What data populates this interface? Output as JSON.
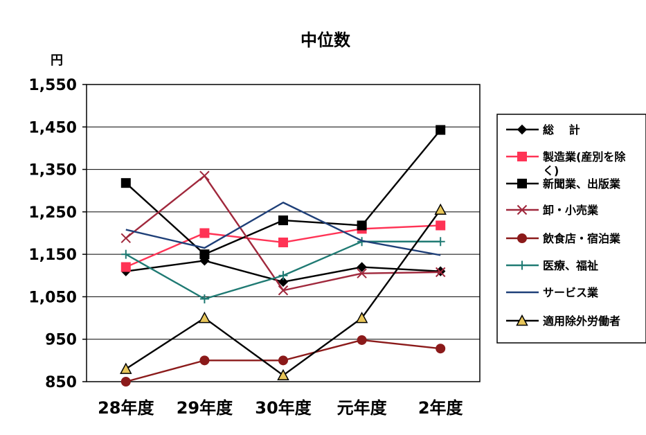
{
  "chart_data": {
    "type": "line",
    "title": "中位数",
    "ylabel": "円",
    "xlabel": "",
    "categories": [
      "28年度",
      "29年度",
      "30年度",
      "元年度",
      "2年度"
    ],
    "ylim": [
      850,
      1550
    ],
    "yticks": [
      850,
      950,
      1050,
      1150,
      1250,
      1350,
      1450,
      1550
    ],
    "ytick_labels": [
      "850",
      "950",
      "1,050",
      "1,150",
      "1,250",
      "1,350",
      "1,450",
      "1,550"
    ],
    "grid": true,
    "legend_position": "right",
    "series": [
      {
        "name": "総　 計",
        "legend_lines": [
          "総　 計"
        ],
        "color": "#000000",
        "marker": "diamond",
        "values": [
          1110,
          1135,
          1085,
          1120,
          1110
        ]
      },
      {
        "name": "製造業(産別を除く)",
        "legend_lines": [
          "製造業(産別を除",
          "く)"
        ],
        "color": "#ff3355",
        "marker": "square",
        "values": [
          1120,
          1200,
          1178,
          1210,
          1218
        ]
      },
      {
        "name": "新聞業、出版業",
        "legend_lines": [
          "新聞業、出版業"
        ],
        "color": "#000000",
        "marker": "square",
        "values": [
          1318,
          1150,
          1230,
          1218,
          1443
        ]
      },
      {
        "name": "卸・小売業",
        "legend_lines": [
          "卸・小売業"
        ],
        "color": "#a0283c",
        "marker": "x",
        "values": [
          1188,
          1335,
          1065,
          1105,
          1108
        ]
      },
      {
        "name": "飲食店・宿泊業",
        "legend_lines": [
          "飲食店・宿泊業"
        ],
        "color": "#8b1a1a",
        "marker": "circle",
        "values": [
          850,
          900,
          900,
          948,
          928
        ]
      },
      {
        "name": "医療、福祉",
        "legend_lines": [
          "医療、福祉"
        ],
        "color": "#1f7a73",
        "marker": "plus",
        "values": [
          1150,
          1045,
          1100,
          1180,
          1180
        ]
      },
      {
        "name": "サービス業",
        "legend_lines": [
          "サービス業"
        ],
        "color": "#1e3f78",
        "marker": "none",
        "values": [
          1208,
          1165,
          1272,
          1182,
          1148
        ]
      },
      {
        "name": "適用除外労働者",
        "legend_lines": [
          "適用除外労働者"
        ],
        "color": "#000000",
        "marker": "triangle",
        "marker_fill": "#e8c65a",
        "values": [
          880,
          1000,
          865,
          1000,
          1255
        ]
      }
    ]
  }
}
